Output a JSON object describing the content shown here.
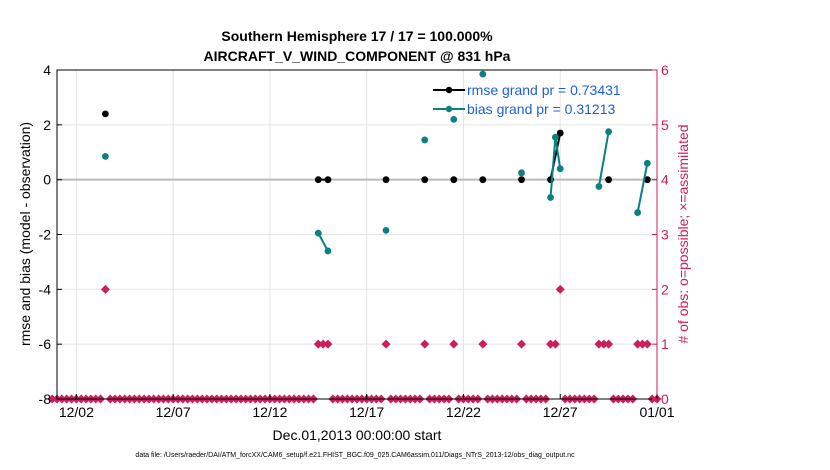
{
  "chart_data": {
    "type": "line",
    "title": "Southern Hemisphere 17 / 17 = 100.000%",
    "subtitle": "AIRCRAFT_V_WIND_COMPONENT @ 831 hPa",
    "xlabel": "Dec.01,2013 00:00:00 start",
    "ylabel": "rmse and bias (model - observation)",
    "y2label": "# of obs: o=possible; ×=assimilated",
    "footer": "data file: /Users/raeder/DAI/ATM_forcXX/CAM6_setup/f.e21.FHIST_BGC.f09_025.CAM6assim.011/Diags_NTrS_2013-12/obs_diag_output.nc",
    "xlim": [
      0,
      31
    ],
    "ylim": [
      -8,
      4
    ],
    "y2lim": [
      0,
      6
    ],
    "x_ticks": [
      1,
      6,
      11,
      16,
      21,
      26,
      31
    ],
    "x_tick_labels": [
      "12/02",
      "12/07",
      "12/12",
      "12/17",
      "12/22",
      "12/27",
      "01/01"
    ],
    "y_ticks": [
      -8,
      -6,
      -4,
      -2,
      0,
      2,
      4
    ],
    "y2_ticks": [
      0,
      1,
      2,
      3,
      4,
      5,
      6
    ],
    "grid": true,
    "zero_line": true,
    "legend": {
      "position": "top-right",
      "entries": [
        "rmse grand pr = 0.73431",
        "bias grand pr = 0.31213"
      ]
    },
    "colors": {
      "rmse": "#000000",
      "bias": "#0a8080",
      "obs": "#cc1f5a",
      "zero": "#bbbbbb",
      "grid": "#e4e4e4"
    },
    "series": [
      {
        "name": "rmse",
        "axis": "left",
        "points": [
          [
            2.5,
            2.4
          ],
          [
            13.5,
            0.0
          ],
          [
            14.0,
            0.0
          ],
          [
            17.0,
            0.0
          ],
          [
            19.0,
            0.0
          ],
          [
            20.5,
            0.0
          ],
          [
            22.0,
            0.0
          ],
          [
            24.0,
            0.0
          ],
          [
            25.5,
            0.0
          ],
          [
            26.0,
            1.7
          ],
          [
            28.5,
            0.0
          ],
          [
            30.5,
            0.0
          ]
        ],
        "segments": [
          [
            13.5,
            14.0
          ],
          [
            25.5,
            26.0
          ]
        ]
      },
      {
        "name": "bias",
        "axis": "left",
        "points": [
          [
            2.5,
            0.85
          ],
          [
            13.5,
            -1.95
          ],
          [
            14.0,
            -2.6
          ],
          [
            17.0,
            -1.85
          ],
          [
            19.0,
            1.45
          ],
          [
            20.5,
            2.2
          ],
          [
            22.0,
            3.85
          ],
          [
            24.0,
            0.25
          ],
          [
            25.5,
            -0.65
          ],
          [
            25.75,
            1.55
          ],
          [
            26.0,
            0.4
          ],
          [
            28.0,
            -0.25
          ],
          [
            28.5,
            1.75
          ],
          [
            30.0,
            -1.2
          ],
          [
            30.5,
            0.6
          ]
        ],
        "segments": [
          [
            13.5,
            14.0
          ],
          [
            25.5,
            25.75,
            26.0
          ],
          [
            28.0,
            28.5
          ],
          [
            30.0,
            30.5
          ]
        ]
      },
      {
        "name": "obs possible / assimilated",
        "axis": "right",
        "points": [
          [
            -0.25,
            0
          ],
          [
            0.0,
            0
          ],
          [
            0.25,
            0
          ],
          [
            0.5,
            0
          ],
          [
            0.75,
            0
          ],
          [
            1.0,
            0
          ],
          [
            1.25,
            0
          ],
          [
            1.5,
            0
          ],
          [
            1.75,
            0
          ],
          [
            2.0,
            0
          ],
          [
            2.25,
            0
          ],
          [
            2.5,
            2
          ],
          [
            2.75,
            0
          ],
          [
            3.0,
            0
          ],
          [
            3.25,
            0
          ],
          [
            3.5,
            0
          ],
          [
            3.75,
            0
          ],
          [
            4.0,
            0
          ],
          [
            4.25,
            0
          ],
          [
            4.5,
            0
          ],
          [
            4.75,
            0
          ],
          [
            5.0,
            0
          ],
          [
            5.25,
            0
          ],
          [
            5.5,
            0
          ],
          [
            5.75,
            0
          ],
          [
            6.0,
            0
          ],
          [
            6.25,
            0
          ],
          [
            6.5,
            0
          ],
          [
            6.75,
            0
          ],
          [
            7.0,
            0
          ],
          [
            7.25,
            0
          ],
          [
            7.5,
            0
          ],
          [
            7.75,
            0
          ],
          [
            8.0,
            0
          ],
          [
            8.25,
            0
          ],
          [
            8.5,
            0
          ],
          [
            8.75,
            0
          ],
          [
            9.0,
            0
          ],
          [
            9.25,
            0
          ],
          [
            9.5,
            0
          ],
          [
            9.75,
            0
          ],
          [
            10.0,
            0
          ],
          [
            10.25,
            0
          ],
          [
            10.5,
            0
          ],
          [
            10.75,
            0
          ],
          [
            11.0,
            0
          ],
          [
            11.25,
            0
          ],
          [
            11.5,
            0
          ],
          [
            11.75,
            0
          ],
          [
            12.0,
            0
          ],
          [
            12.25,
            0
          ],
          [
            12.5,
            0
          ],
          [
            12.75,
            0
          ],
          [
            13.0,
            0
          ],
          [
            13.25,
            0
          ],
          [
            13.5,
            1
          ],
          [
            13.75,
            1
          ],
          [
            14.0,
            1
          ],
          [
            14.25,
            0
          ],
          [
            14.5,
            0
          ],
          [
            14.75,
            0
          ],
          [
            15.0,
            0
          ],
          [
            15.25,
            0
          ],
          [
            15.5,
            0
          ],
          [
            15.75,
            0
          ],
          [
            16.0,
            0
          ],
          [
            16.25,
            0
          ],
          [
            16.5,
            0
          ],
          [
            16.75,
            0
          ],
          [
            17.0,
            1
          ],
          [
            17.25,
            0
          ],
          [
            17.5,
            0
          ],
          [
            17.75,
            0
          ],
          [
            18.0,
            0
          ],
          [
            18.25,
            0
          ],
          [
            18.5,
            0
          ],
          [
            18.75,
            0
          ],
          [
            19.0,
            1
          ],
          [
            19.25,
            0
          ],
          [
            19.5,
            0
          ],
          [
            19.75,
            0
          ],
          [
            20.0,
            0
          ],
          [
            20.25,
            0
          ],
          [
            20.5,
            1
          ],
          [
            20.75,
            0
          ],
          [
            21.0,
            0
          ],
          [
            21.25,
            0
          ],
          [
            21.5,
            0
          ],
          [
            21.75,
            0
          ],
          [
            22.0,
            1
          ],
          [
            22.25,
            0
          ],
          [
            22.5,
            0
          ],
          [
            22.75,
            0
          ],
          [
            23.0,
            0
          ],
          [
            23.25,
            0
          ],
          [
            23.5,
            0
          ],
          [
            23.75,
            0
          ],
          [
            24.0,
            1
          ],
          [
            24.25,
            0
          ],
          [
            24.5,
            0
          ],
          [
            24.75,
            0
          ],
          [
            25.0,
            0
          ],
          [
            25.25,
            0
          ],
          [
            25.5,
            1
          ],
          [
            25.75,
            1
          ],
          [
            26.0,
            2
          ],
          [
            26.25,
            0
          ],
          [
            26.5,
            0
          ],
          [
            26.75,
            0
          ],
          [
            27.0,
            0
          ],
          [
            27.25,
            0
          ],
          [
            27.5,
            0
          ],
          [
            27.75,
            0
          ],
          [
            28.0,
            1
          ],
          [
            28.25,
            1
          ],
          [
            28.5,
            1
          ],
          [
            28.75,
            0
          ],
          [
            29.0,
            0
          ],
          [
            29.25,
            0
          ],
          [
            29.5,
            0
          ],
          [
            29.75,
            0
          ],
          [
            30.0,
            1
          ],
          [
            30.25,
            1
          ],
          [
            30.5,
            1
          ],
          [
            30.75,
            0
          ],
          [
            31.0,
            0
          ]
        ]
      }
    ]
  }
}
